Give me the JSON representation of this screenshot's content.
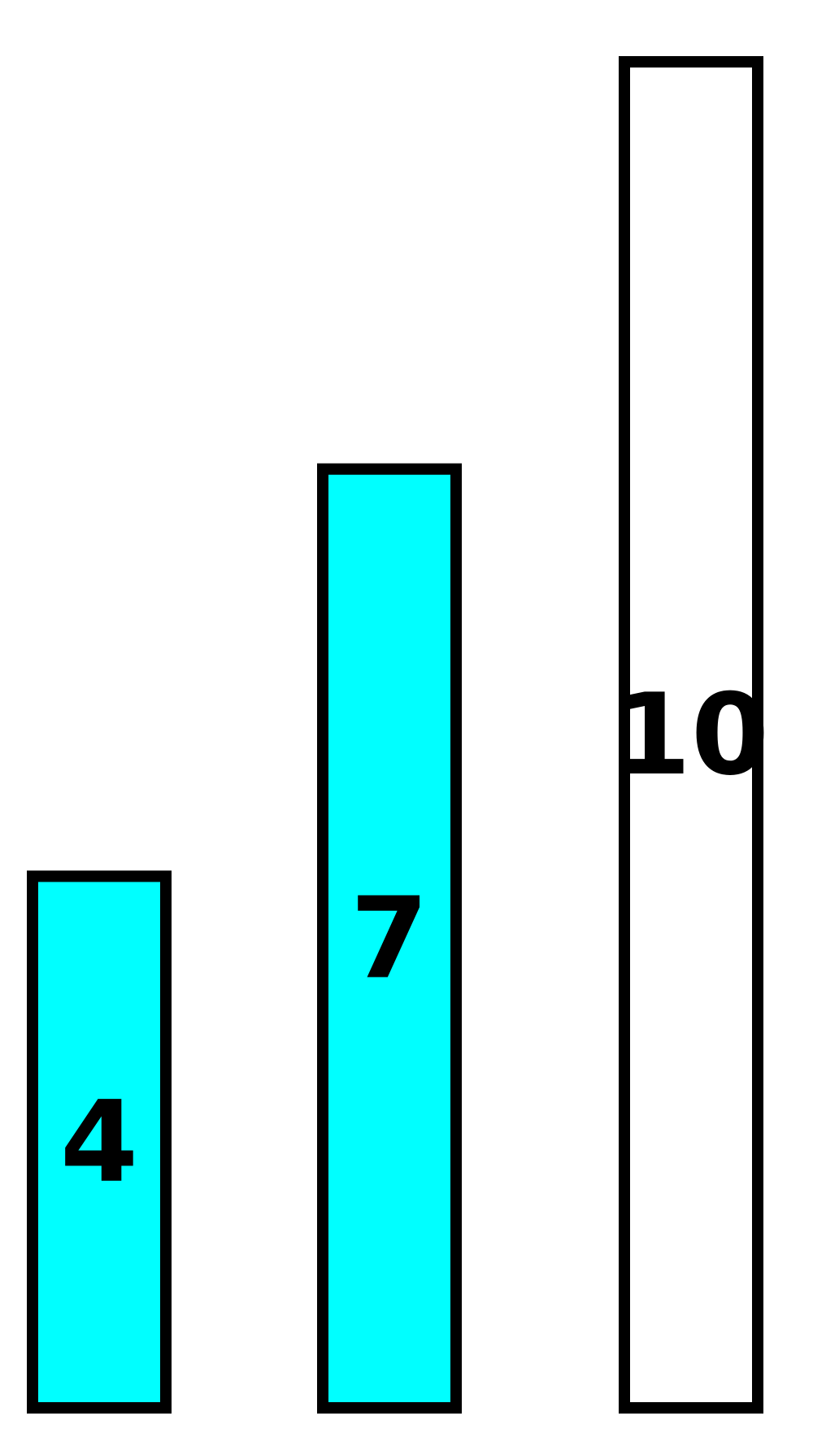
{
  "chart_data": {
    "type": "bar",
    "categories": [
      "",
      "",
      ""
    ],
    "series": [
      {
        "values": [
          4,
          7,
          10
        ],
        "labels": [
          "4",
          "7",
          "10"
        ],
        "colors": [
          "#00ffff",
          "#00ffff",
          "#ffffff"
        ]
      }
    ],
    "title": "",
    "xlabel": "",
    "ylabel": "",
    "ylim": [
      0,
      10
    ],
    "grid": false,
    "legend": "none",
    "bar_outline_color": "#000000"
  }
}
